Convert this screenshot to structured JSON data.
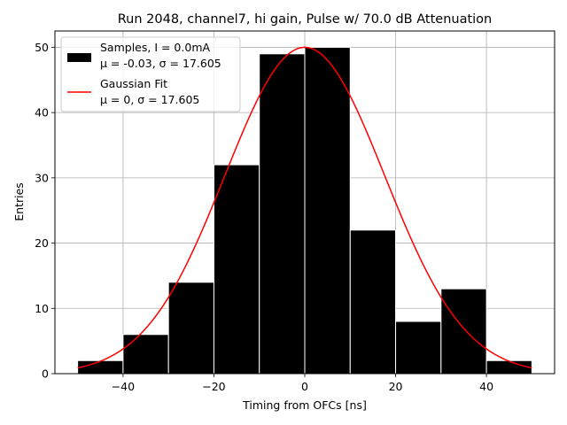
{
  "chart_data": {
    "type": "bar",
    "title": "Run 2048, channel7, hi gain, Pulse w/ 70.0 dB Attenuation",
    "xlabel": "Timing from OFCs [ns]",
    "ylabel": "Entries",
    "xlim": [
      -55,
      55
    ],
    "ylim": [
      0,
      52.5
    ],
    "xticks": [
      -40,
      -20,
      0,
      20,
      40
    ],
    "xtick_labels": [
      "−40",
      "−20",
      "0",
      "20",
      "40"
    ],
    "yticks": [
      0,
      10,
      20,
      30,
      40,
      50
    ],
    "ytick_labels": [
      "0",
      "10",
      "20",
      "30",
      "40",
      "50"
    ],
    "grid": true,
    "legend_position": "top-left",
    "bin_edges": [
      -50,
      -40,
      -30,
      -20,
      -10,
      0,
      10,
      20,
      30,
      40,
      50
    ],
    "series": [
      {
        "name": "Samples, I = 0.0mA",
        "stats": "μ = -0.03, σ = 17.605",
        "kind": "histogram",
        "color": "#000000",
        "values": [
          2,
          6,
          14,
          32,
          49,
          50,
          22,
          8,
          13,
          2
        ]
      },
      {
        "name": "Gaussian Fit",
        "stats": "μ = 0, σ = 17.605",
        "kind": "line",
        "color": "#ff0000",
        "mu": 0,
        "sigma": 17.605,
        "amplitude": 50,
        "x_range": [
          -50,
          50
        ]
      }
    ]
  }
}
